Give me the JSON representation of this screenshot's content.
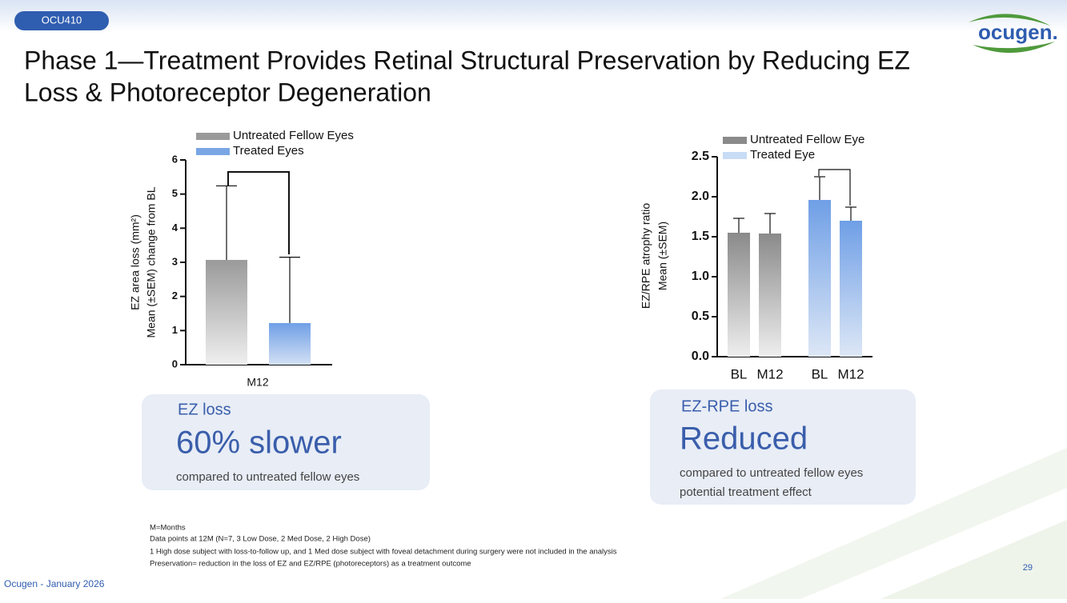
{
  "header": {
    "tag": "OCU410",
    "logo": "ocugen.",
    "title_lines": [
      "Phase 1—Treatment Provides Retinal Structural Preservation by Reducing EZ",
      "Loss & Photoreceptor Degeneration"
    ]
  },
  "chart_data": [
    {
      "type": "bar",
      "ylabel": [
        "EZ area loss (mm²)",
        "Mean (±SEM) change from  BL"
      ],
      "categories": [
        "M12"
      ],
      "series": [
        {
          "name": "Untreated Fellow Eyes",
          "color": "#9a9a9a",
          "values": [
            3.07
          ],
          "errors": [
            2.17
          ]
        },
        {
          "name": "Treated Eyes",
          "color": "#7aa6e6",
          "values": [
            1.22
          ],
          "errors": [
            1.93
          ]
        }
      ],
      "ylim": [
        0,
        6
      ],
      "yticks": [
        0,
        1,
        2,
        3,
        4,
        5,
        6
      ]
    },
    {
      "type": "bar",
      "ylabel": [
        "EZ/RPE atrophy ratio",
        "Mean (±SEM)"
      ],
      "categories": [
        "BL",
        "M12",
        "BL",
        "M12"
      ],
      "series": [
        {
          "name": "Untreated Fellow Eye",
          "color": "#8a8a8a",
          "values": [
            1.55,
            1.54,
            null,
            null
          ],
          "errors": [
            0.18,
            0.25,
            null,
            null
          ]
        },
        {
          "name": "Treated Eye",
          "color": "#c9dcf5",
          "values": [
            null,
            null,
            1.96,
            1.7
          ],
          "errors": [
            null,
            null,
            0.29,
            0.17
          ]
        }
      ],
      "ylim": [
        0,
        2.5
      ],
      "yticks": [
        {
          "value": 0,
          "label": "0.0"
        },
        0.5,
        {
          "value": 1,
          "label": "1.0"
        },
        1.5,
        {
          "value": 2,
          "label": "2.0"
        },
        2.5
      ]
    }
  ],
  "callouts": [
    {
      "heading": "EZ loss",
      "big": "60% slower",
      "lines": [
        "compared to untreated fellow eyes"
      ]
    },
    {
      "heading": "EZ-RPE loss",
      "big": "Reduced",
      "lines": [
        "compared to untreated fellow eyes",
        "potential treatment effect"
      ]
    }
  ],
  "footnotes": [
    "M=Months",
    "Data points at  12M (N=7, 3 Low Dose, 2 Med Dose, 2 High Dose)",
    "1 High dose subject with loss-to-follow up, and 1 Med dose subject with foveal detachment during surgery were not included in the analysis",
    "Preservation= reduction in the loss of EZ and EZ/RPE (photoreceptors) as a treatment outcome"
  ],
  "footer": {
    "left": "Ocugen - January 2026",
    "page": "29"
  }
}
